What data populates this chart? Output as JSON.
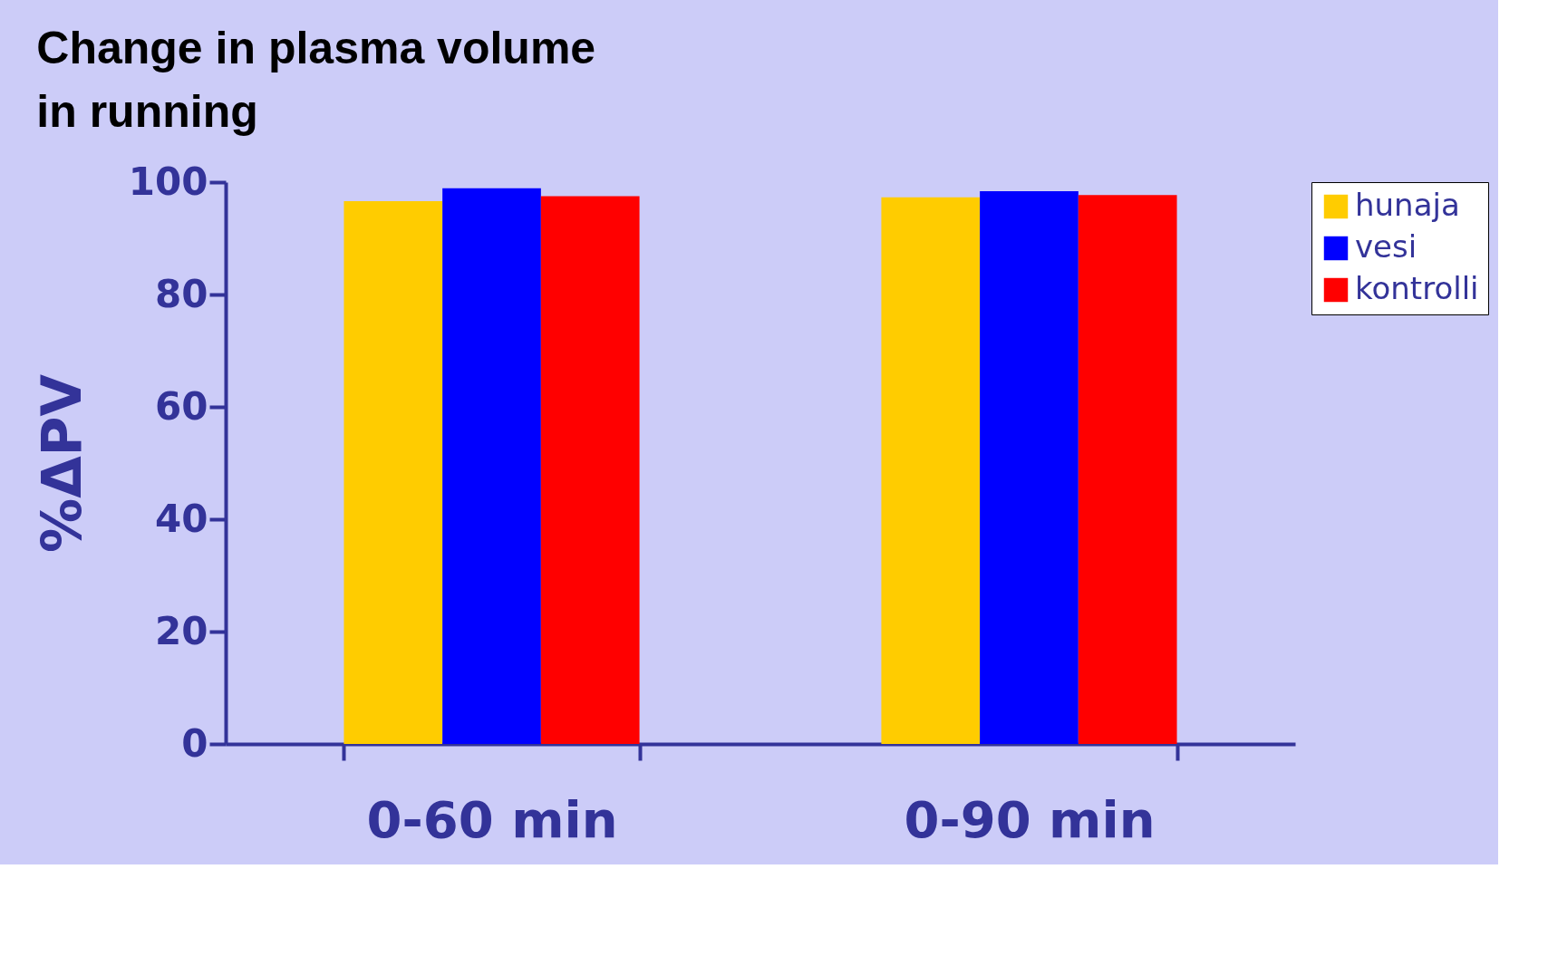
{
  "chart_data": {
    "type": "bar",
    "title": "Change in plasma volume",
    "subtitle": "in running",
    "ylabel": "%ΔPV",
    "categories": [
      "0-60 min",
      "0-90 min"
    ],
    "series": [
      {
        "name": "hunaja",
        "color": "#ffcc00",
        "values": [
          96.6,
          97.3
        ]
      },
      {
        "name": "vesi",
        "color": "#0000ff",
        "values": [
          98.9,
          98.4
        ]
      },
      {
        "name": "kontrolli",
        "color": "#ff0000",
        "values": [
          97.5,
          97.7
        ]
      }
    ],
    "ylim": [
      0,
      100
    ],
    "yticks": [
      0,
      20,
      40,
      60,
      80,
      100
    ],
    "grid": false,
    "legend": "right"
  }
}
